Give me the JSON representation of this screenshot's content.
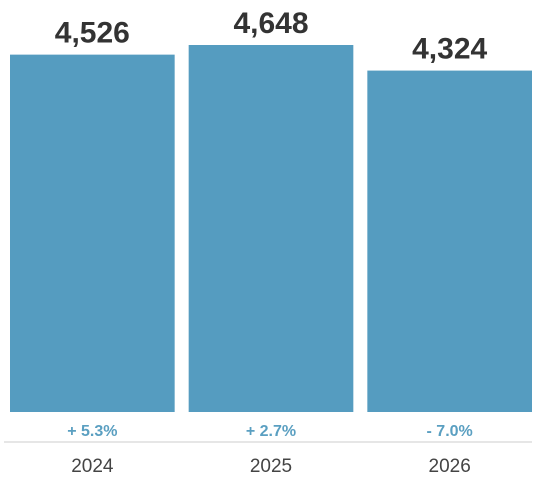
{
  "chart_data": {
    "type": "bar",
    "categories": [
      "2024",
      "2025",
      "2026"
    ],
    "values": [
      4526,
      4648,
      4324
    ],
    "value_labels": [
      "4,526",
      "4,648",
      "4,324"
    ],
    "change_labels": [
      "+ 5.3%",
      "+ 2.7%",
      "- 7.0%"
    ],
    "ylim": [
      0,
      4648
    ],
    "grid": false,
    "colors": {
      "bar": "#559cc0",
      "value_text": "#333333",
      "change_text": "#5a9fc1",
      "axis": "#cccccc",
      "tick_text": "#444444"
    }
  }
}
